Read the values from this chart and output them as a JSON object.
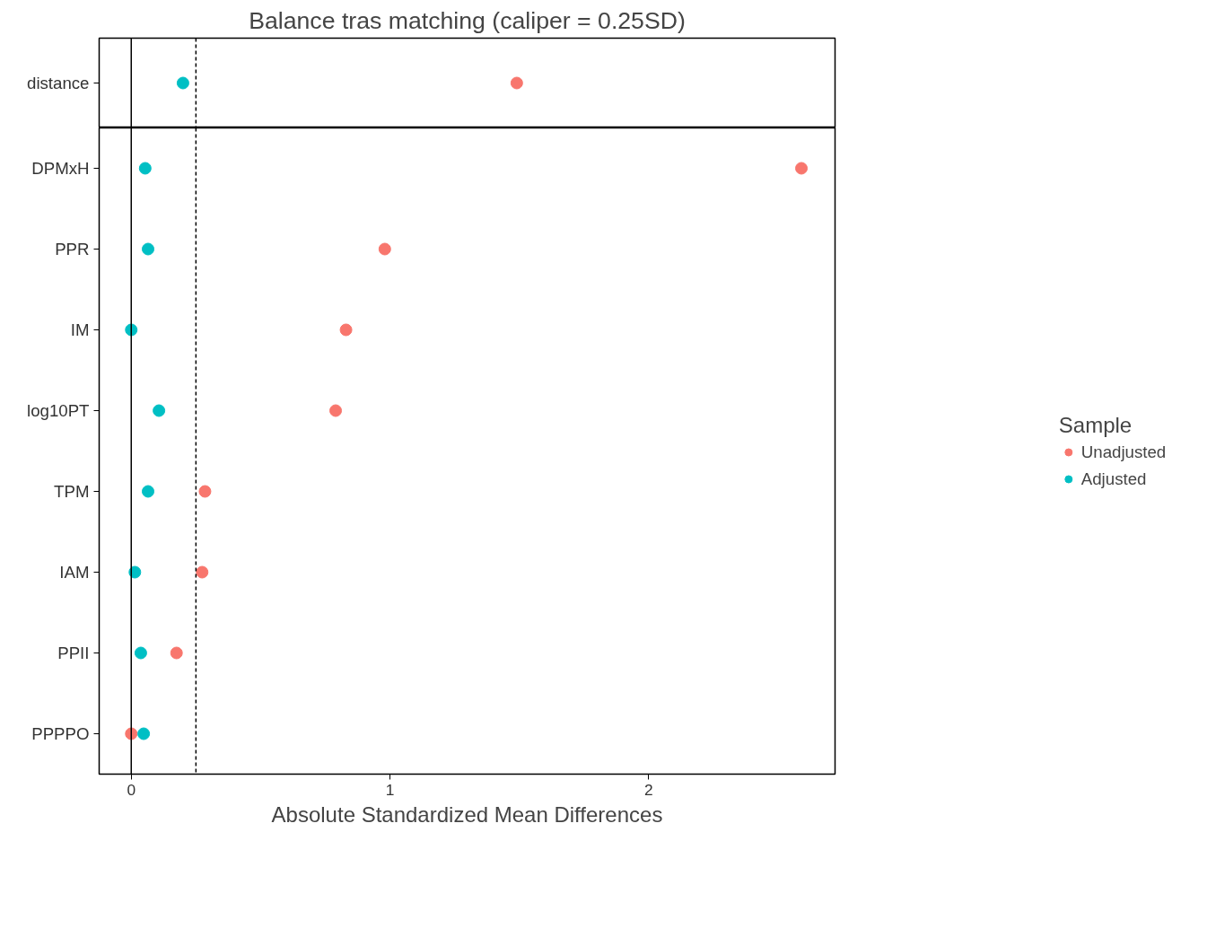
{
  "chart_data": [
    {
      "type": "scatter",
      "orientation": "horizontal",
      "title": "Balance tras matching (caliper = 0.25SD)",
      "categories": [
        "distance"
      ],
      "series": [
        {
          "color": "#f8766d",
          "values": [
            1.49
          ]
        },
        {
          "color": "#00bfc4",
          "values": [
            0.2
          ]
        }
      ],
      "xlim": [
        -0.124,
        2.72
      ],
      "xticks": [
        0,
        1,
        2
      ],
      "tick_labels": "y",
      "marker": "circle",
      "ref_lines": [
        {
          "axis": "x",
          "value": 0,
          "color": "#000000",
          "line_style": "solid"
        },
        {
          "axis": "x",
          "value": 0.25,
          "color": "#000000",
          "line_style": "dashed"
        }
      ]
    },
    {
      "type": "scatter",
      "orientation": "horizontal",
      "xlabel": "Absolute Standardized Mean Differences",
      "categories": [
        "DPMxH",
        "PPR",
        "IM",
        "log10PT",
        "TPM",
        "IAM",
        "PPII",
        "PPPPO"
      ],
      "series": [
        {
          "name": "Unadjusted",
          "color": "#f8766d",
          "values": [
            2.59,
            0.98,
            0.83,
            0.79,
            0.285,
            0.274,
            0.175,
            0.0
          ]
        },
        {
          "name": "Adjusted",
          "color": "#00bfc4",
          "values": [
            0.054,
            0.065,
            0.0,
            0.107,
            0.065,
            0.014,
            0.037,
            0.048
          ]
        }
      ],
      "xlim": [
        -0.124,
        2.72
      ],
      "xticks": [
        0,
        1,
        2
      ],
      "marker": "circle",
      "legend": "right",
      "legend_title": "Sample",
      "ref_lines": [
        {
          "axis": "x",
          "value": 0,
          "color": "#000000",
          "line_style": "solid"
        },
        {
          "axis": "x",
          "value": 0.25,
          "color": "#000000",
          "line_style": "dashed"
        }
      ]
    }
  ]
}
